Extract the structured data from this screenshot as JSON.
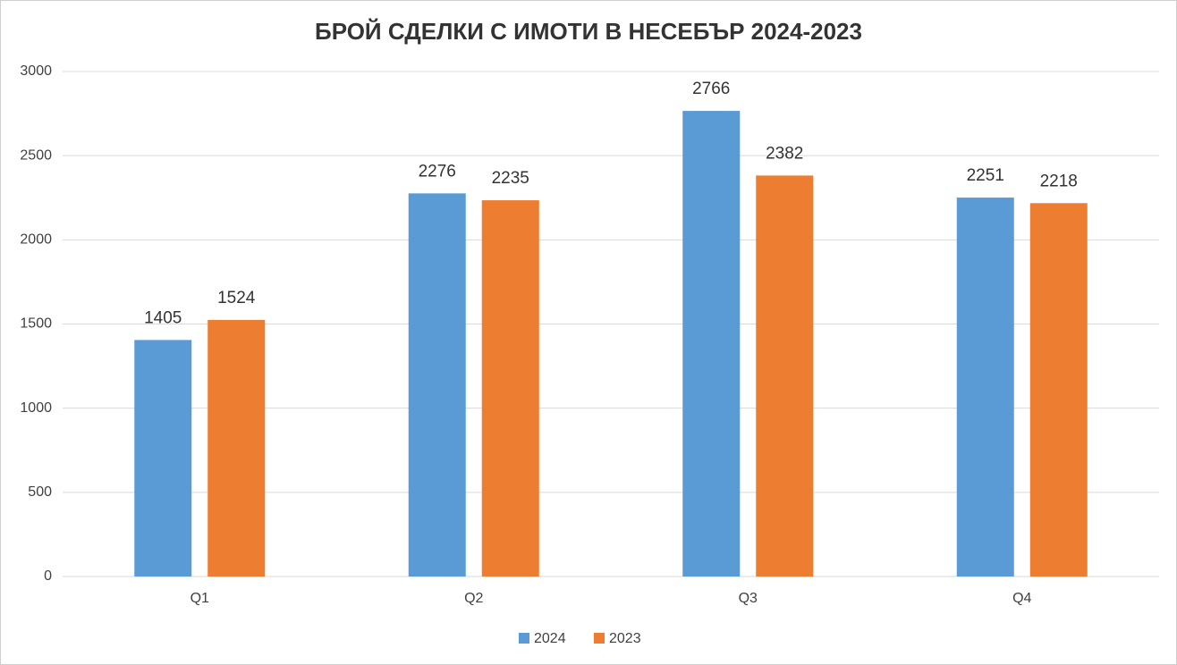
{
  "chart_data": {
    "type": "bar",
    "title": "БРОЙ СДЕЛКИ С ИМОТИ В НЕСЕБЪР 2024-2023",
    "categories": [
      "Q1",
      "Q2",
      "Q3",
      "Q4"
    ],
    "series": [
      {
        "name": "2024",
        "color": "#5b9bd5",
        "values": [
          1405,
          2276,
          2766,
          2251
        ]
      },
      {
        "name": "2023",
        "color": "#ed7d31",
        "values": [
          1524,
          2235,
          2382,
          2218
        ]
      }
    ],
    "ylim": [
      0,
      3000
    ],
    "yticks": [
      0,
      500,
      1000,
      1500,
      2000,
      2500,
      3000
    ],
    "grid": true,
    "legend": "bottom"
  }
}
